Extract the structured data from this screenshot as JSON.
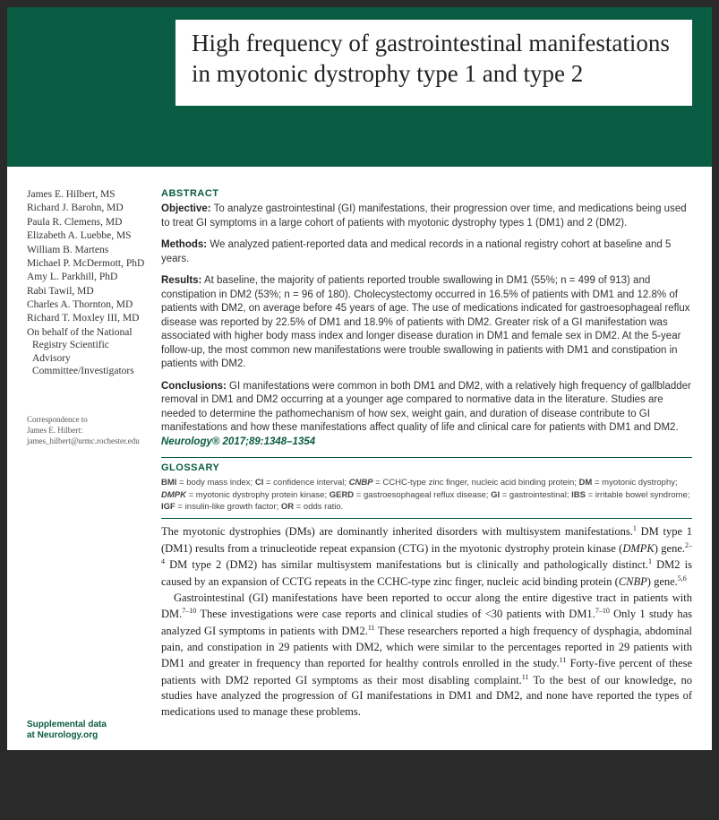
{
  "title": "High frequency of gastrointestinal manifestations in myotonic dystrophy type 1 and type 2",
  "authors": [
    "James E. Hilbert, MS",
    "Richard J. Barohn, MD",
    "Paula R. Clemens, MD",
    "Elizabeth A. Luebbe, MS",
    "William B. Martens",
    "Michael P. McDermott, PhD",
    "Amy L. Parkhill, PhD",
    "Rabi Tawil, MD",
    "Charles A. Thornton, MD",
    "Richard T. Moxley III, MD",
    "On behalf of the National Registry Scientific Advisory Committee/Investigators"
  ],
  "correspondence": {
    "label": "Correspondence to",
    "name": "James E. Hilbert:",
    "email": "james_hilbert@urmc.rochester.edu"
  },
  "abstract_head": "ABSTRACT",
  "abstract": {
    "objective_label": "Objective:",
    "objective": "To analyze gastrointestinal (GI) manifestations, their progression over time, and medications being used to treat GI symptoms in a large cohort of patients with myotonic dystrophy types 1 (DM1) and 2 (DM2).",
    "methods_label": "Methods:",
    "methods": "We analyzed patient-reported data and medical records in a national registry cohort at baseline and 5 years.",
    "results_label": "Results:",
    "results": "At baseline, the majority of patients reported trouble swallowing in DM1 (55%; n = 499 of 913) and constipation in DM2 (53%; n = 96 of 180). Cholecystectomy occurred in 16.5% of patients with DM1 and 12.8% of patients with DM2, on average before 45 years of age. The use of medications indicated for gastroesophageal reflux disease was reported by 22.5% of DM1 and 18.9% of patients with DM2. Greater risk of a GI manifestation was associated with higher body mass index and longer disease duration in DM1 and female sex in DM2. At the 5-year follow-up, the most common new manifestations were trouble swallowing in patients with DM1 and constipation in patients with DM2.",
    "conclusions_label": "Conclusions:",
    "conclusions": "GI manifestations were common in both DM1 and DM2, with a relatively high frequency of gallbladder removal in DM1 and DM2 occurring at a younger age compared to normative data in the literature. Studies are needed to determine the pathomechanism of how sex, weight gain, and duration of disease contribute to GI manifestations and how these manifestations affect quality of life and clinical care for patients with DM1 and DM2.",
    "citation": "Neurology® 2017;89:1348–1354"
  },
  "glossary_head": "GLOSSARY",
  "glossary": "BMI = body mass index; CI = confidence interval; CNBP = CCHC-type zinc finger, nucleic acid binding protein; DM = myotonic dystrophy; DMPK = myotonic dystrophy protein kinase; GERD = gastroesophageal reflux disease; GI = gastrointestinal; IBS = irritable bowel syndrome; IGF = insulin-like growth factor; OR = odds ratio.",
  "body_p1": "The myotonic dystrophies (DMs) are dominantly inherited disorders with multisystem manifestations.¹ DM type 1 (DM1) results from a trinucleotide repeat expansion (CTG) in the myotonic dystrophy protein kinase (DMPK) gene.²⁻⁴ DM type 2 (DM2) has similar multisystem manifestations but is clinically and pathologically distinct.¹ DM2 is caused by an expansion of CCTG repeats in the CCHC-type zinc finger, nucleic acid binding protein (CNBP) gene.⁵,⁶",
  "body_p2": "Gastrointestinal (GI) manifestations have been reported to occur along the entire digestive tract in patients with DM.⁷⁻¹⁰ These investigations were case reports and clinical studies of <30 patients with DM1.⁷⁻¹⁰ Only 1 study has analyzed GI symptoms in patients with DM2.¹¹ These researchers reported a high frequency of dysphagia, abdominal pain, and constipation in 29 patients with DM2, which were similar to the percentages reported in 29 patients with DM1 and greater in frequency than reported for healthy controls enrolled in the study.¹¹ Forty-five percent of these patients with DM2 reported GI symptoms as their most disabling complaint.¹¹ To the best of our knowledge, no studies have analyzed the progression of GI manifestations in DM1 and DM2, and none have reported the types of medications used to manage these problems.",
  "supplemental": {
    "line1": "Supplemental data",
    "line2": "at Neurology.org"
  },
  "colors": {
    "teal": "#0a5c42",
    "page_bg": "#ffffff",
    "viewer_bg": "#2a2a2a"
  }
}
